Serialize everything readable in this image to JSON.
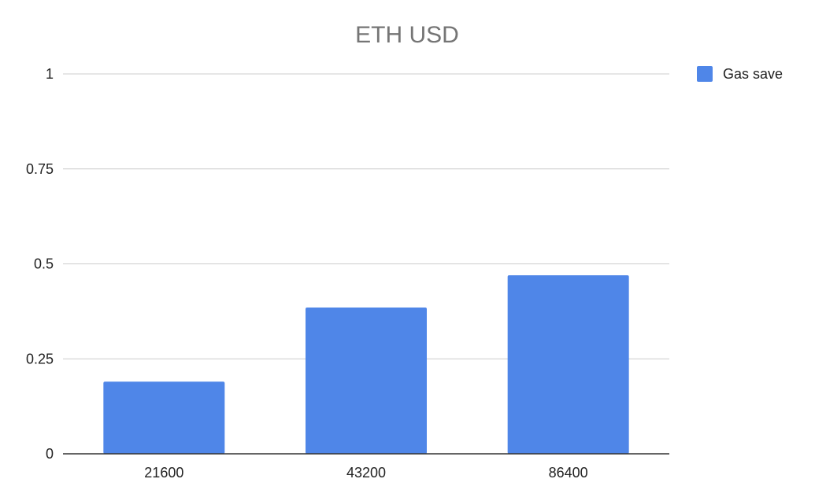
{
  "chart_data": {
    "type": "bar",
    "title": "ETH USD",
    "categories": [
      "21600",
      "43200",
      "86400"
    ],
    "series": [
      {
        "name": "Gas save",
        "values": [
          0.19,
          0.385,
          0.47
        ],
        "color": "#4f86e8"
      }
    ],
    "xlabel": "",
    "ylabel": "",
    "ylim": [
      0,
      1
    ],
    "yticks": [
      0,
      0.25,
      0.5,
      0.75,
      1
    ],
    "ytick_labels": [
      "0",
      "0.25",
      "0.5",
      "0.75",
      "1"
    ],
    "grid": true,
    "legend": "right"
  }
}
